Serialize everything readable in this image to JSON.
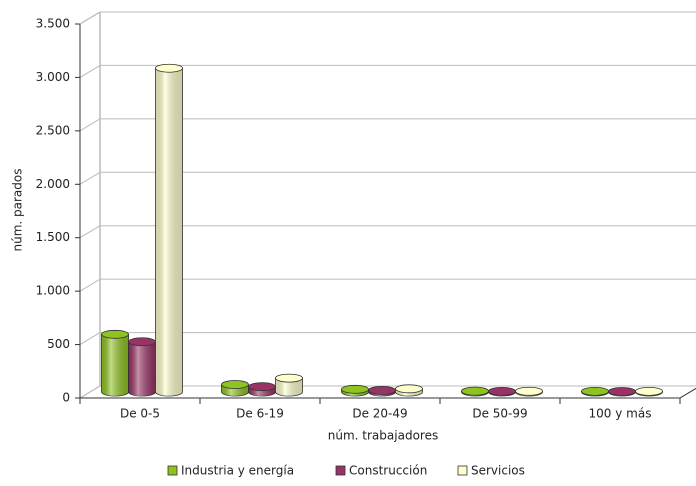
{
  "chart_data": {
    "type": "bar",
    "x_label": "núm. trabajadores",
    "y_label": "núm. parados",
    "categories": [
      "De 0-5",
      "De 6-19",
      "De 20-49",
      "De 50-99",
      "100 y más"
    ],
    "series": [
      {
        "name": "Industria y energía",
        "color": "#8fc31f",
        "values": [
          540,
          70,
          25,
          8,
          6
        ]
      },
      {
        "name": "Construcción",
        "color": "#993366",
        "values": [
          470,
          50,
          15,
          6,
          5
        ]
      },
      {
        "name": "Servicios",
        "color": "#ffffcc",
        "values": [
          3030,
          130,
          30,
          7,
          6
        ]
      }
    ],
    "ylim": [
      0,
      3500
    ],
    "yticks": [
      0,
      500,
      {
        "value": 1000,
        "label": "1.000"
      },
      {
        "value": 1500,
        "label": "1.500"
      },
      {
        "value": 2000,
        "label": "2.000"
      },
      {
        "value": 2500,
        "label": "2.500"
      },
      {
        "value": 3000,
        "label": "3.000"
      },
      {
        "value": 3500,
        "label": "3.500"
      }
    ],
    "grid": true,
    "legend": "bottom"
  }
}
